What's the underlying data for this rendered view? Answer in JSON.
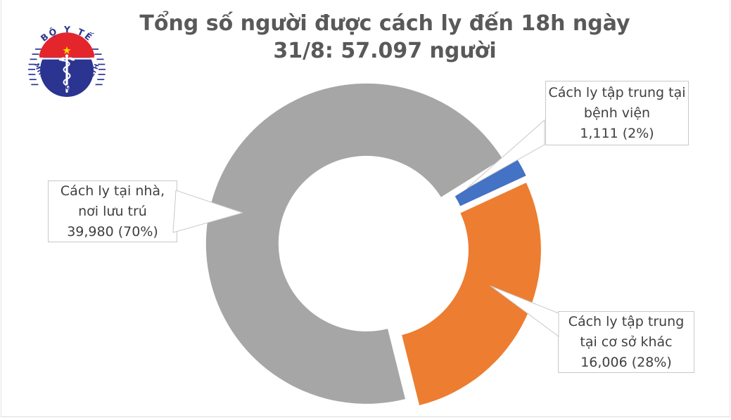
{
  "page": {
    "background": "#FFFFFF",
    "frame_color": "#E4E4E4"
  },
  "header": {
    "title_line1": "Tổng số người được cách ly đến 18h ngày",
    "title_line2": "31/8: 57.097 người",
    "title_color": "#595959"
  },
  "logo": {
    "top_text": "BỘ Y TẾ",
    "bottom_text": "MINISTRY OF HEALTH",
    "navy": "#2B3490",
    "red": "#E4262C",
    "star_color": "#FFD500"
  },
  "chart_data": {
    "type": "pie",
    "subtype": "exploded_donut",
    "title": "Tổng số người được cách ly đến 18h ngày 31/8: 57.097 người",
    "total_text": "57.097",
    "unit": "người",
    "start_angle_deg": 166,
    "donut_hole_ratio": 0.55,
    "legend_position": "none",
    "slices": [
      {
        "key": "home-quarantine",
        "label": "Cách ly tại nhà, nơi lưu trú",
        "value": 39980,
        "value_text": "39,980",
        "pct": 70,
        "pct_text": "(70%)",
        "color": "#A6A6A6",
        "callout": {
          "line1": "Cách ly tại nhà,",
          "line2": "nơi lưu trú",
          "line3": "39,980 (70%)"
        }
      },
      {
        "key": "hospital-quarantine",
        "label": "Cách ly tập trung tại bệnh viện",
        "value": 1111,
        "value_text": "1,111",
        "pct": 2,
        "pct_text": "(2%)",
        "color": "#4472C4",
        "callout": {
          "line1": "Cách ly tập trung tại",
          "line2": "bệnh viện",
          "line3": "1,111 (2%)"
        }
      },
      {
        "key": "other-facility-quarantine",
        "label": "Cách ly tập trung tại cơ sở khác",
        "value": 16006,
        "value_text": "16,006",
        "pct": 28,
        "pct_text": "(28%)",
        "color": "#ED7D31",
        "callout": {
          "line1": "Cách ly tập trung",
          "line2": "tại cơ sở khác",
          "line3": "16,006 (28%)"
        }
      }
    ]
  }
}
